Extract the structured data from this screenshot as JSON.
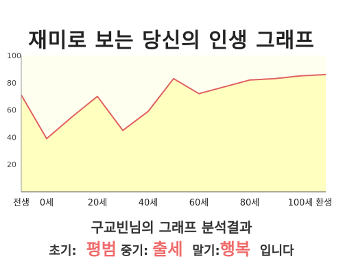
{
  "title": "재미로 보는 당신의 인생 그래프",
  "summary": {
    "heading": "구교빈님의 그래프 분석결과",
    "early_label": "초기:",
    "early_value": "평범",
    "mid_label": "중기:",
    "mid_value": "출세",
    "late_label": "말기:",
    "late_value": "행복",
    "suffix": "입니다"
  },
  "colors": {
    "line": "#e06060",
    "fill": "#ffffc0",
    "background": "#fffff0",
    "highlight": "#f06a6a"
  },
  "chart_data": {
    "type": "area",
    "title": "",
    "xlabel": "",
    "ylabel": "",
    "xlim": [
      -10,
      110
    ],
    "ylim": [
      0,
      100
    ],
    "grid": false,
    "x_ticks": [
      {
        "x": -10,
        "label": "전생"
      },
      {
        "x": 0,
        "label": "0세"
      },
      {
        "x": 20,
        "label": "20세"
      },
      {
        "x": 40,
        "label": "40세"
      },
      {
        "x": 60,
        "label": "60세"
      },
      {
        "x": 80,
        "label": "80세"
      },
      {
        "x": 100,
        "label": "100세"
      },
      {
        "x": 110,
        "label": "환생"
      }
    ],
    "y_ticks": [
      20,
      40,
      60,
      80,
      100
    ],
    "series": [
      {
        "x": [
          -10,
          0,
          10,
          20,
          30,
          40,
          50,
          60,
          70,
          80,
          90,
          100,
          110
        ],
        "values": [
          71,
          39,
          55,
          70,
          45,
          59,
          83,
          72,
          77,
          82,
          83,
          85,
          86
        ]
      }
    ]
  }
}
